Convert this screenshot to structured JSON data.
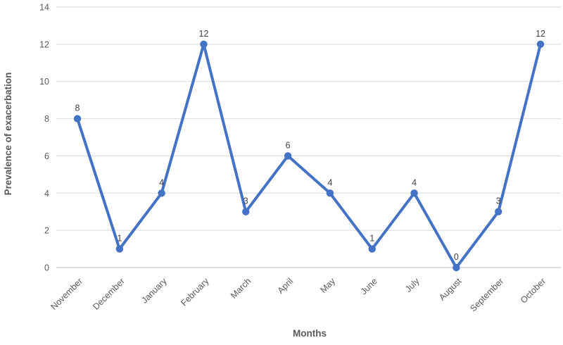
{
  "chart_data": {
    "type": "line",
    "title": "",
    "xlabel": "Months",
    "ylabel": "Prevalence of exacerbation",
    "categories": [
      "November",
      "December",
      "January",
      "February",
      "March",
      "April",
      "May",
      "June",
      "July",
      "August",
      "September",
      "October"
    ],
    "values": [
      8,
      1,
      4,
      12,
      3,
      6,
      4,
      1,
      4,
      0,
      3,
      12
    ],
    "data_labels": [
      8,
      1,
      4,
      12,
      3,
      6,
      4,
      1,
      4,
      0,
      3,
      12
    ],
    "ylim": [
      0,
      14
    ],
    "yticks": [
      0,
      2,
      4,
      6,
      8,
      10,
      12,
      14
    ],
    "grid": "horizontal",
    "legend_position": "none",
    "marker": "circle",
    "colors": {
      "line": "#4472C4",
      "marker": "#4472C4",
      "gridline": "#D9D9D9",
      "zero_axis_line": "#BFBFBF",
      "tick_label": "#595959",
      "category_label": "#595959",
      "data_label": "#404040",
      "axis_title": "#595959",
      "background": "#FFFFFF"
    }
  }
}
